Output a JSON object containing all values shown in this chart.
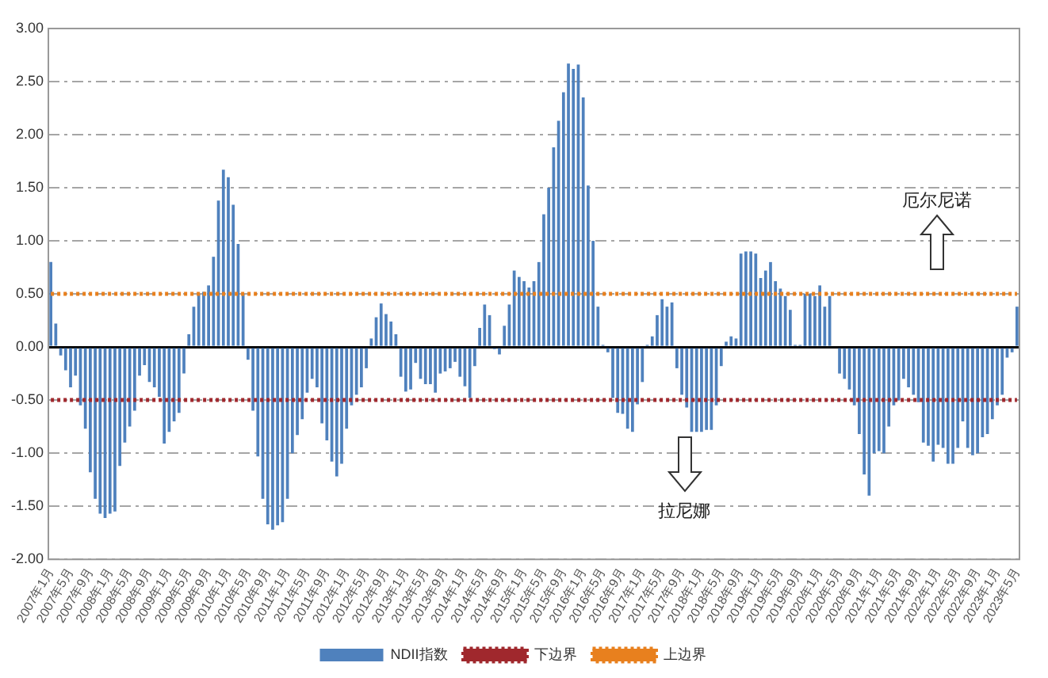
{
  "chart_data": {
    "type": "bar",
    "categories": [
      "2007年1月",
      null,
      null,
      null,
      "2007年5月",
      null,
      null,
      null,
      "2007年9月",
      null,
      null,
      null,
      "2008年1月",
      null,
      null,
      null,
      "2008年5月",
      null,
      null,
      null,
      "2008年9月",
      null,
      null,
      null,
      "2009年1月",
      null,
      null,
      null,
      "2009年5月",
      null,
      null,
      null,
      "2009年9月",
      null,
      null,
      null,
      "2010年1月",
      null,
      null,
      null,
      "2010年5月",
      null,
      null,
      null,
      "2010年9月",
      null,
      null,
      null,
      "2011年1月",
      null,
      null,
      null,
      "2011年5月",
      null,
      null,
      null,
      "2011年9月",
      null,
      null,
      null,
      "2012年1月",
      null,
      null,
      null,
      "2012年5月",
      null,
      null,
      null,
      "2012年9月",
      null,
      null,
      null,
      "2013年1月",
      null,
      null,
      null,
      "2013年5月",
      null,
      null,
      null,
      "2013年9月",
      null,
      null,
      null,
      "2014年1月",
      null,
      null,
      null,
      "2014年5月",
      null,
      null,
      null,
      "2014年9月",
      null,
      null,
      null,
      "2015年1月",
      null,
      null,
      null,
      "2015年5月",
      null,
      null,
      null,
      "2015年9月",
      null,
      null,
      null,
      "2016年1月",
      null,
      null,
      null,
      "2016年5月",
      null,
      null,
      null,
      "2016年9月",
      null,
      null,
      null,
      "2017年1月",
      null,
      null,
      null,
      "2017年5月",
      null,
      null,
      null,
      "2017年9月",
      null,
      null,
      null,
      "2018年1月",
      null,
      null,
      null,
      "2018年5月",
      null,
      null,
      null,
      "2018年9月",
      null,
      null,
      null,
      "2019年1月",
      null,
      null,
      null,
      "2019年5月",
      null,
      null,
      null,
      "2019年9月",
      null,
      null,
      null,
      "2020年1月",
      null,
      null,
      null,
      "2020年5月",
      null,
      null,
      null,
      "2020年9月",
      null,
      null,
      null,
      "2021年1月",
      null,
      null,
      null,
      "2021年5月",
      null,
      null,
      null,
      "2021年9月",
      null,
      null,
      null,
      "2022年1月",
      null,
      null,
      null,
      "2022年5月",
      null,
      null,
      null,
      "2022年9月",
      null,
      null,
      null,
      "2023年1月",
      null,
      null,
      null,
      "2023年5月"
    ],
    "series": [
      {
        "name": "NDII指数",
        "color": "#4f81bd",
        "values": [
          0.8,
          0.22,
          -0.08,
          -0.22,
          -0.38,
          -0.27,
          -0.55,
          -0.77,
          -1.18,
          -1.43,
          -1.57,
          -1.61,
          -1.57,
          -1.55,
          -1.12,
          -0.9,
          -0.75,
          -0.6,
          -0.27,
          -0.17,
          -0.33,
          -0.38,
          -0.47,
          -0.91,
          -0.8,
          -0.7,
          -0.62,
          -0.25,
          0.12,
          0.38,
          0.5,
          0.52,
          0.58,
          0.85,
          1.38,
          1.67,
          1.6,
          1.34,
          0.97,
          0.5,
          -0.12,
          -0.6,
          -1.03,
          -1.43,
          -1.67,
          -1.72,
          -1.68,
          -1.65,
          -1.43,
          -1.0,
          -0.83,
          -0.68,
          -0.43,
          -0.3,
          -0.38,
          -0.72,
          -0.88,
          -1.08,
          -1.22,
          -1.1,
          -0.77,
          -0.55,
          -0.45,
          -0.38,
          -0.2,
          0.08,
          0.28,
          0.41,
          0.31,
          0.24,
          0.12,
          -0.28,
          -0.42,
          -0.4,
          -0.15,
          -0.3,
          -0.35,
          -0.35,
          -0.43,
          -0.25,
          -0.23,
          -0.2,
          -0.14,
          -0.28,
          -0.37,
          -0.48,
          -0.18,
          0.18,
          0.4,
          0.3,
          -0.02,
          -0.07,
          0.2,
          0.4,
          0.72,
          0.66,
          0.62,
          0.56,
          0.62,
          0.8,
          1.25,
          1.5,
          1.88,
          2.13,
          2.4,
          2.67,
          2.62,
          2.66,
          2.35,
          1.52,
          1.0,
          0.38,
          0.02,
          -0.05,
          -0.48,
          -0.62,
          -0.63,
          -0.77,
          -0.8,
          -0.54,
          -0.33,
          0.02,
          0.1,
          0.3,
          0.45,
          0.38,
          0.42,
          -0.2,
          -0.45,
          -0.57,
          -0.8,
          -0.8,
          -0.8,
          -0.78,
          -0.78,
          -0.55,
          -0.18,
          0.05,
          0.1,
          0.08,
          0.88,
          0.9,
          0.9,
          0.88,
          0.65,
          0.72,
          0.8,
          0.62,
          0.55,
          0.48,
          0.35,
          0.02,
          0.02,
          0.5,
          0.5,
          0.48,
          0.58,
          0.38,
          0.48,
          0.0,
          -0.25,
          -0.3,
          -0.4,
          -0.55,
          -0.82,
          -1.2,
          -1.4,
          -1.0,
          -0.98,
          -1.0,
          -0.75,
          -0.55,
          -0.5,
          -0.3,
          -0.38,
          -0.45,
          -0.52,
          -0.9,
          -0.93,
          -1.08,
          -0.92,
          -0.95,
          -1.1,
          -1.1,
          -0.95,
          -0.7,
          -0.95,
          -1.02,
          -1.0,
          -0.85,
          -0.82,
          -0.68,
          -0.55,
          -0.45,
          -0.1,
          -0.05,
          0.38
        ]
      },
      {
        "name": "下边界",
        "type": "line",
        "color": "#a0282d",
        "values": [
          -0.5,
          -0.5,
          -0.5,
          -0.5,
          -0.5,
          -0.5,
          -0.5,
          -0.5,
          -0.5,
          -0.5,
          -0.5,
          -0.5,
          -0.5,
          -0.5,
          -0.5,
          -0.5,
          -0.5,
          -0.5,
          -0.5,
          -0.5,
          -0.5,
          -0.5,
          -0.5,
          -0.5,
          -0.5,
          -0.5,
          -0.5,
          -0.5,
          -0.5,
          -0.5,
          -0.5,
          -0.5,
          -0.5,
          -0.5,
          -0.5,
          -0.5,
          -0.5,
          -0.5,
          -0.5,
          -0.5,
          -0.5,
          -0.5,
          -0.5,
          -0.5,
          -0.5,
          -0.5,
          -0.5,
          -0.5,
          -0.5,
          -0.5,
          -0.5,
          -0.5,
          -0.5,
          -0.5,
          -0.5,
          -0.5,
          -0.5,
          -0.5,
          -0.5,
          -0.5,
          -0.5,
          -0.5,
          -0.5,
          -0.5,
          -0.5,
          -0.5,
          -0.5,
          -0.5,
          -0.5,
          -0.5,
          -0.5,
          -0.5,
          -0.5,
          -0.5,
          -0.5,
          -0.5,
          -0.5,
          -0.5,
          -0.5,
          -0.5,
          -0.5,
          -0.5,
          -0.5,
          -0.5,
          -0.5,
          -0.5,
          -0.5,
          -0.5,
          -0.5,
          -0.5,
          -0.5,
          -0.5,
          -0.5,
          -0.5,
          -0.5,
          -0.5,
          -0.5,
          -0.5,
          -0.5,
          -0.5,
          -0.5,
          -0.5,
          -0.5,
          -0.5,
          -0.5,
          -0.5,
          -0.5,
          -0.5,
          -0.5,
          -0.5,
          -0.5,
          -0.5,
          -0.5,
          -0.5,
          -0.5,
          -0.5,
          -0.5,
          -0.5,
          -0.5,
          -0.5,
          -0.5,
          -0.5,
          -0.5,
          -0.5,
          -0.5,
          -0.5,
          -0.5,
          -0.5,
          -0.5,
          -0.5,
          -0.5,
          -0.5,
          -0.5,
          -0.5,
          -0.5,
          -0.5,
          -0.5,
          -0.5,
          -0.5,
          -0.5,
          -0.5,
          -0.5,
          -0.5,
          -0.5,
          -0.5,
          -0.5,
          -0.5,
          -0.5,
          -0.5,
          -0.5,
          -0.5,
          -0.5,
          -0.5,
          -0.5,
          -0.5,
          -0.5,
          -0.5,
          -0.5,
          -0.5,
          -0.5,
          -0.5,
          -0.5,
          -0.5,
          -0.5,
          -0.5,
          -0.5,
          -0.5,
          -0.5,
          -0.5,
          -0.5,
          -0.5,
          -0.5,
          -0.5,
          -0.5,
          -0.5,
          -0.5,
          -0.5,
          -0.5,
          -0.5,
          -0.5,
          -0.5,
          -0.5,
          -0.5,
          -0.5,
          -0.5,
          -0.5,
          -0.5,
          -0.5,
          -0.5,
          -0.5,
          -0.5,
          -0.5,
          -0.5,
          -0.5,
          -0.5,
          -0.5,
          -0.5
        ]
      },
      {
        "name": "上边界",
        "type": "line",
        "color": "#e8801e",
        "values": [
          0.5,
          0.5,
          0.5,
          0.5,
          0.5,
          0.5,
          0.5,
          0.5,
          0.5,
          0.5,
          0.5,
          0.5,
          0.5,
          0.5,
          0.5,
          0.5,
          0.5,
          0.5,
          0.5,
          0.5,
          0.5,
          0.5,
          0.5,
          0.5,
          0.5,
          0.5,
          0.5,
          0.5,
          0.5,
          0.5,
          0.5,
          0.5,
          0.5,
          0.5,
          0.5,
          0.5,
          0.5,
          0.5,
          0.5,
          0.5,
          0.5,
          0.5,
          0.5,
          0.5,
          0.5,
          0.5,
          0.5,
          0.5,
          0.5,
          0.5,
          0.5,
          0.5,
          0.5,
          0.5,
          0.5,
          0.5,
          0.5,
          0.5,
          0.5,
          0.5,
          0.5,
          0.5,
          0.5,
          0.5,
          0.5,
          0.5,
          0.5,
          0.5,
          0.5,
          0.5,
          0.5,
          0.5,
          0.5,
          0.5,
          0.5,
          0.5,
          0.5,
          0.5,
          0.5,
          0.5,
          0.5,
          0.5,
          0.5,
          0.5,
          0.5,
          0.5,
          0.5,
          0.5,
          0.5,
          0.5,
          0.5,
          0.5,
          0.5,
          0.5,
          0.5,
          0.5,
          0.5,
          0.5,
          0.5,
          0.5,
          0.5,
          0.5,
          0.5,
          0.5,
          0.5,
          0.5,
          0.5,
          0.5,
          0.5,
          0.5,
          0.5,
          0.5,
          0.5,
          0.5,
          0.5,
          0.5,
          0.5,
          0.5,
          0.5,
          0.5,
          0.5,
          0.5,
          0.5,
          0.5,
          0.5,
          0.5,
          0.5,
          0.5,
          0.5,
          0.5,
          0.5,
          0.5,
          0.5,
          0.5,
          0.5,
          0.5,
          0.5,
          0.5,
          0.5,
          0.5,
          0.5,
          0.5,
          0.5,
          0.5,
          0.5,
          0.5,
          0.5,
          0.5,
          0.5,
          0.5,
          0.5,
          0.5,
          0.5,
          0.5,
          0.5,
          0.5,
          0.5,
          0.5,
          0.5,
          0.5,
          0.5,
          0.5,
          0.5,
          0.5,
          0.5,
          0.5,
          0.5,
          0.5,
          0.5,
          0.5,
          0.5,
          0.5,
          0.5,
          0.5,
          0.5,
          0.5,
          0.5,
          0.5,
          0.5,
          0.5,
          0.5,
          0.5,
          0.5,
          0.5,
          0.5,
          0.5,
          0.5,
          0.5,
          0.5,
          0.5,
          0.5,
          0.5,
          0.5,
          0.5,
          0.5,
          0.5,
          0.5
        ]
      }
    ],
    "ylim": [
      -2,
      3
    ],
    "yticks": [
      {
        "value": -2,
        "label": "-2.00"
      },
      {
        "value": -1.5,
        "label": "-1.50"
      },
      {
        "value": -1,
        "label": "-1.00"
      },
      {
        "value": -0.5,
        "label": "-0.50"
      },
      {
        "value": 0,
        "label": "0.00"
      },
      {
        "value": 0.5,
        "label": "0.50"
      },
      {
        "value": 1,
        "label": "1.00"
      },
      {
        "value": 1.5,
        "label": "1.50"
      },
      {
        "value": 2,
        "label": "2.00"
      },
      {
        "value": 2.5,
        "label": "2.50"
      },
      {
        "value": 3,
        "label": "3.00"
      }
    ],
    "line_style": "dotted",
    "annotations": [
      "厄尔尼诺",
      "拉尼娜"
    ],
    "grid": "y",
    "legend": "bottom"
  }
}
